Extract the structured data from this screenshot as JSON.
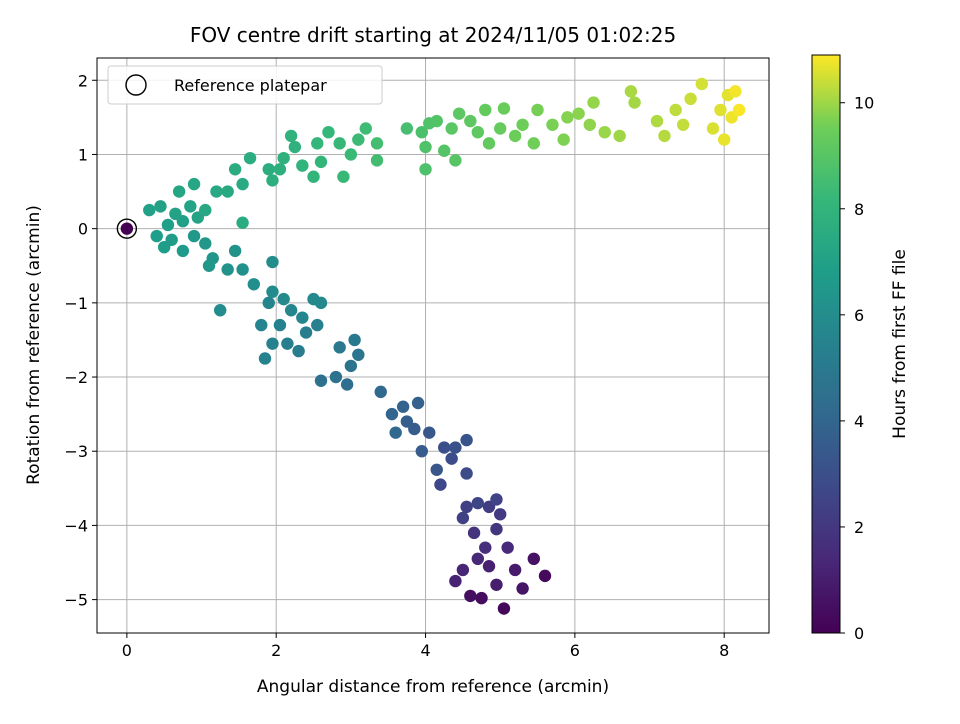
{
  "chart_data": {
    "type": "scatter",
    "title": "FOV centre drift starting at 2024/11/05 01:02:25",
    "xlabel": "Angular distance from reference (arcmin)",
    "ylabel": "Rotation from reference (arcmin)",
    "xlim": [
      -0.4,
      8.6
    ],
    "ylim": [
      -5.45,
      2.3
    ],
    "xticks": [
      "0",
      "2",
      "4",
      "6",
      "8"
    ],
    "yticks": [
      "2",
      "1",
      "0",
      "−1",
      "−2",
      "−3",
      "−4",
      "−5"
    ],
    "grid": true,
    "legend": {
      "placement": "top-left",
      "label": "Reference platepar"
    },
    "reference_point": {
      "x": 0,
      "y": 0
    },
    "colormap": "viridis",
    "colorbar": {
      "label": "Hours from first FF file",
      "range": [
        0,
        10.9
      ],
      "ticks": [
        "0",
        "2",
        "4",
        "6",
        "8",
        "10"
      ]
    },
    "points": [
      {
        "x": 5.05,
        "y": -5.12,
        "t": 0.2
      },
      {
        "x": 4.75,
        "y": -4.98,
        "t": 0.4
      },
      {
        "x": 4.6,
        "y": -4.95,
        "t": 0.5
      },
      {
        "x": 5.6,
        "y": -4.68,
        "t": 0.3
      },
      {
        "x": 5.45,
        "y": -4.45,
        "t": 0.6
      },
      {
        "x": 5.3,
        "y": -4.85,
        "t": 0.7
      },
      {
        "x": 5.2,
        "y": -4.6,
        "t": 0.9
      },
      {
        "x": 4.95,
        "y": -4.8,
        "t": 1.0
      },
      {
        "x": 4.85,
        "y": -4.55,
        "t": 1.1
      },
      {
        "x": 4.4,
        "y": -4.75,
        "t": 1.2
      },
      {
        "x": 4.5,
        "y": -4.6,
        "t": 1.3
      },
      {
        "x": 4.7,
        "y": -4.45,
        "t": 1.4
      },
      {
        "x": 4.8,
        "y": -4.3,
        "t": 1.6
      },
      {
        "x": 5.1,
        "y": -4.3,
        "t": 1.5
      },
      {
        "x": 4.65,
        "y": -4.1,
        "t": 1.8
      },
      {
        "x": 4.95,
        "y": -4.05,
        "t": 1.9
      },
      {
        "x": 5.0,
        "y": -3.85,
        "t": 2.1
      },
      {
        "x": 4.85,
        "y": -3.75,
        "t": 2.2
      },
      {
        "x": 4.55,
        "y": -3.75,
        "t": 2.3
      },
      {
        "x": 4.5,
        "y": -3.9,
        "t": 2.4
      },
      {
        "x": 4.95,
        "y": -3.65,
        "t": 2.5
      },
      {
        "x": 4.7,
        "y": -3.7,
        "t": 2.6
      },
      {
        "x": 4.2,
        "y": -3.45,
        "t": 2.7
      },
      {
        "x": 4.55,
        "y": -3.3,
        "t": 2.8
      },
      {
        "x": 4.35,
        "y": -3.1,
        "t": 2.9
      },
      {
        "x": 4.25,
        "y": -2.95,
        "t": 3.0
      },
      {
        "x": 4.4,
        "y": -2.95,
        "t": 3.1
      },
      {
        "x": 4.55,
        "y": -2.85,
        "t": 3.2
      },
      {
        "x": 4.15,
        "y": -3.25,
        "t": 3.3
      },
      {
        "x": 4.05,
        "y": -2.75,
        "t": 3.4
      },
      {
        "x": 3.95,
        "y": -3.0,
        "t": 3.5
      },
      {
        "x": 3.85,
        "y": -2.7,
        "t": 3.6
      },
      {
        "x": 3.75,
        "y": -2.6,
        "t": 3.7
      },
      {
        "x": 3.9,
        "y": -2.35,
        "t": 3.8
      },
      {
        "x": 3.7,
        "y": -2.4,
        "t": 3.9
      },
      {
        "x": 3.55,
        "y": -2.5,
        "t": 4.0
      },
      {
        "x": 3.6,
        "y": -2.75,
        "t": 4.1
      },
      {
        "x": 3.4,
        "y": -2.2,
        "t": 4.2
      },
      {
        "x": 2.95,
        "y": -2.1,
        "t": 4.4
      },
      {
        "x": 2.8,
        "y": -2.0,
        "t": 4.6
      },
      {
        "x": 3.0,
        "y": -1.85,
        "t": 4.7
      },
      {
        "x": 3.1,
        "y": -1.7,
        "t": 4.8
      },
      {
        "x": 3.05,
        "y": -1.5,
        "t": 4.9
      },
      {
        "x": 2.85,
        "y": -1.6,
        "t": 5.0
      },
      {
        "x": 2.6,
        "y": -2.05,
        "t": 4.5
      },
      {
        "x": 2.3,
        "y": -1.65,
        "t": 5.1
      },
      {
        "x": 2.15,
        "y": -1.55,
        "t": 5.2
      },
      {
        "x": 2.4,
        "y": -1.4,
        "t": 5.3
      },
      {
        "x": 2.55,
        "y": -1.3,
        "t": 5.35
      },
      {
        "x": 2.05,
        "y": -1.3,
        "t": 5.4
      },
      {
        "x": 1.95,
        "y": -1.55,
        "t": 5.45
      },
      {
        "x": 1.85,
        "y": -1.75,
        "t": 5.5
      },
      {
        "x": 1.8,
        "y": -1.3,
        "t": 5.55
      },
      {
        "x": 1.9,
        "y": -1.0,
        "t": 5.6
      },
      {
        "x": 2.2,
        "y": -1.1,
        "t": 5.65
      },
      {
        "x": 2.35,
        "y": -1.2,
        "t": 5.7
      },
      {
        "x": 2.6,
        "y": -1.0,
        "t": 5.75
      },
      {
        "x": 2.5,
        "y": -0.95,
        "t": 5.8
      },
      {
        "x": 2.1,
        "y": -0.95,
        "t": 5.85
      },
      {
        "x": 1.95,
        "y": -0.85,
        "t": 5.9
      },
      {
        "x": 1.25,
        "y": -1.1,
        "t": 5.95
      },
      {
        "x": 1.95,
        "y": -0.45,
        "t": 6.0
      },
      {
        "x": 1.7,
        "y": -0.75,
        "t": 6.1
      },
      {
        "x": 1.55,
        "y": -0.55,
        "t": 6.2
      },
      {
        "x": 1.35,
        "y": -0.55,
        "t": 6.25
      },
      {
        "x": 1.45,
        "y": -0.3,
        "t": 6.3
      },
      {
        "x": 1.15,
        "y": -0.4,
        "t": 6.35
      },
      {
        "x": 1.1,
        "y": -0.5,
        "t": 6.4
      },
      {
        "x": 1.05,
        "y": -0.2,
        "t": 6.5
      },
      {
        "x": 0.9,
        "y": -0.1,
        "t": 6.55
      },
      {
        "x": 0.75,
        "y": -0.3,
        "t": 6.6
      },
      {
        "x": 0.6,
        "y": -0.15,
        "t": 6.7
      },
      {
        "x": 0.5,
        "y": -0.25,
        "t": 6.75
      },
      {
        "x": 0.4,
        "y": -0.1,
        "t": 6.8
      },
      {
        "x": 0.55,
        "y": 0.05,
        "t": 6.85
      },
      {
        "x": 0.75,
        "y": 0.1,
        "t": 6.9
      },
      {
        "x": 0.3,
        "y": 0.25,
        "t": 6.95
      },
      {
        "x": 0.45,
        "y": 0.3,
        "t": 7.0
      },
      {
        "x": 0.65,
        "y": 0.2,
        "t": 7.05
      },
      {
        "x": 0.85,
        "y": 0.3,
        "t": 7.1
      },
      {
        "x": 0.95,
        "y": 0.15,
        "t": 7.15
      },
      {
        "x": 0.7,
        "y": 0.5,
        "t": 7.2
      },
      {
        "x": 0.9,
        "y": 0.6,
        "t": 7.25
      },
      {
        "x": 1.05,
        "y": 0.25,
        "t": 7.3
      },
      {
        "x": 1.2,
        "y": 0.5,
        "t": 7.35
      },
      {
        "x": 1.35,
        "y": 0.5,
        "t": 7.4
      },
      {
        "x": 1.55,
        "y": 0.6,
        "t": 7.45
      },
      {
        "x": 1.55,
        "y": 0.08,
        "t": 7.5
      },
      {
        "x": 1.45,
        "y": 0.8,
        "t": 7.55
      },
      {
        "x": 1.65,
        "y": 0.95,
        "t": 7.6
      },
      {
        "x": 1.9,
        "y": 0.8,
        "t": 7.65
      },
      {
        "x": 1.95,
        "y": 0.65,
        "t": 7.7
      },
      {
        "x": 2.05,
        "y": 0.8,
        "t": 7.75
      },
      {
        "x": 2.1,
        "y": 0.95,
        "t": 7.8
      },
      {
        "x": 2.25,
        "y": 1.1,
        "t": 7.85
      },
      {
        "x": 2.2,
        "y": 1.25,
        "t": 7.9
      },
      {
        "x": 2.35,
        "y": 0.85,
        "t": 7.95
      },
      {
        "x": 2.5,
        "y": 0.7,
        "t": 8.0
      },
      {
        "x": 2.6,
        "y": 0.9,
        "t": 8.05
      },
      {
        "x": 2.55,
        "y": 1.15,
        "t": 8.1
      },
      {
        "x": 2.7,
        "y": 1.3,
        "t": 8.15
      },
      {
        "x": 2.85,
        "y": 1.15,
        "t": 8.2
      },
      {
        "x": 2.9,
        "y": 0.7,
        "t": 8.25
      },
      {
        "x": 3.0,
        "y": 1.0,
        "t": 8.3
      },
      {
        "x": 3.1,
        "y": 1.2,
        "t": 8.35
      },
      {
        "x": 3.2,
        "y": 1.35,
        "t": 8.4
      },
      {
        "x": 3.35,
        "y": 0.92,
        "t": 8.5
      },
      {
        "x": 3.35,
        "y": 1.15,
        "t": 8.55
      },
      {
        "x": 3.75,
        "y": 1.35,
        "t": 8.6
      },
      {
        "x": 3.95,
        "y": 1.3,
        "t": 8.7
      },
      {
        "x": 4.05,
        "y": 1.42,
        "t": 8.8
      },
      {
        "x": 4.0,
        "y": 0.8,
        "t": 8.75
      },
      {
        "x": 4.0,
        "y": 1.1,
        "t": 8.85
      },
      {
        "x": 4.15,
        "y": 1.45,
        "t": 8.9
      },
      {
        "x": 4.25,
        "y": 1.05,
        "t": 8.95
      },
      {
        "x": 4.4,
        "y": 0.92,
        "t": 9.0
      },
      {
        "x": 4.35,
        "y": 1.35,
        "t": 9.05
      },
      {
        "x": 4.45,
        "y": 1.55,
        "t": 9.1
      },
      {
        "x": 4.6,
        "y": 1.45,
        "t": 9.15
      },
      {
        "x": 4.7,
        "y": 1.3,
        "t": 9.2
      },
      {
        "x": 4.85,
        "y": 1.15,
        "t": 9.25
      },
      {
        "x": 4.8,
        "y": 1.6,
        "t": 9.3
      },
      {
        "x": 5.0,
        "y": 1.35,
        "t": 9.35
      },
      {
        "x": 5.05,
        "y": 1.62,
        "t": 9.4
      },
      {
        "x": 5.2,
        "y": 1.25,
        "t": 9.45
      },
      {
        "x": 5.3,
        "y": 1.4,
        "t": 9.5
      },
      {
        "x": 5.45,
        "y": 1.15,
        "t": 9.55
      },
      {
        "x": 5.5,
        "y": 1.6,
        "t": 9.6
      },
      {
        "x": 5.7,
        "y": 1.4,
        "t": 9.65
      },
      {
        "x": 5.85,
        "y": 1.2,
        "t": 9.7
      },
      {
        "x": 5.9,
        "y": 1.5,
        "t": 9.75
      },
      {
        "x": 6.05,
        "y": 1.55,
        "t": 9.8
      },
      {
        "x": 6.2,
        "y": 1.4,
        "t": 9.85
      },
      {
        "x": 6.25,
        "y": 1.7,
        "t": 9.9
      },
      {
        "x": 6.4,
        "y": 1.3,
        "t": 9.95
      },
      {
        "x": 6.6,
        "y": 1.25,
        "t": 10.0
      },
      {
        "x": 6.8,
        "y": 1.7,
        "t": 10.05
      },
      {
        "x": 6.75,
        "y": 1.85,
        "t": 10.1
      },
      {
        "x": 7.1,
        "y": 1.45,
        "t": 10.15
      },
      {
        "x": 7.2,
        "y": 1.25,
        "t": 10.2
      },
      {
        "x": 7.35,
        "y": 1.6,
        "t": 10.3
      },
      {
        "x": 7.45,
        "y": 1.4,
        "t": 10.35
      },
      {
        "x": 7.55,
        "y": 1.75,
        "t": 10.4
      },
      {
        "x": 7.7,
        "y": 1.95,
        "t": 10.5
      },
      {
        "x": 7.85,
        "y": 1.35,
        "t": 10.55
      },
      {
        "x": 7.95,
        "y": 1.6,
        "t": 10.6
      },
      {
        "x": 8.05,
        "y": 1.8,
        "t": 10.65
      },
      {
        "x": 8.0,
        "y": 1.2,
        "t": 10.7
      },
      {
        "x": 8.1,
        "y": 1.5,
        "t": 10.75
      },
      {
        "x": 8.15,
        "y": 1.85,
        "t": 10.8
      },
      {
        "x": 8.2,
        "y": 1.6,
        "t": 10.85
      }
    ]
  }
}
